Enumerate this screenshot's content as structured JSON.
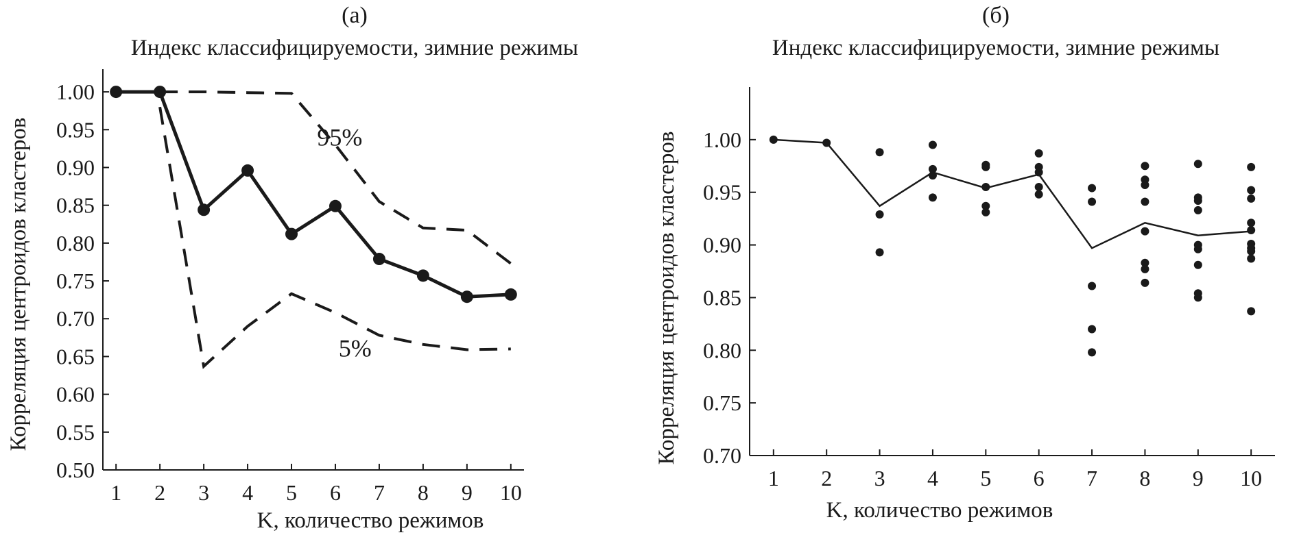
{
  "chart_data": [
    {
      "type": "line",
      "panel_label": "(а)",
      "title": "Индекс классифицируемости, зимние режимы",
      "xlabel": "K, количество режимов",
      "ylabel": "Корреляция центроидов кластеров",
      "x": [
        1,
        2,
        3,
        4,
        5,
        6,
        7,
        8,
        9,
        10
      ],
      "xlim": [
        0.7,
        10.3
      ],
      "ylim": [
        0.5,
        1.03
      ],
      "yticks": [
        "0.50",
        "0.55",
        "0.60",
        "0.65",
        "0.70",
        "0.75",
        "0.80",
        "0.85",
        "0.90",
        "0.95",
        "1.00"
      ],
      "series": [
        {
          "name": "mean",
          "style": "solid-markers",
          "values": [
            1.0,
            1.0,
            0.844,
            0.896,
            0.812,
            0.849,
            0.779,
            0.757,
            0.729,
            0.732
          ]
        },
        {
          "name": "95%",
          "style": "dashed",
          "values": [
            1.0,
            1.0,
            1.0,
            0.999,
            0.998,
            0.93,
            0.855,
            0.82,
            0.817,
            0.773
          ]
        },
        {
          "name": "5%",
          "style": "dashed",
          "values": [
            1.0,
            0.98,
            0.637,
            0.69,
            0.733,
            0.708,
            0.678,
            0.666,
            0.659,
            0.66
          ]
        }
      ],
      "annotations": [
        {
          "text": "95%",
          "x": 6.1,
          "y": 0.94
        },
        {
          "text": "5%",
          "x": 6.45,
          "y": 0.661
        }
      ]
    },
    {
      "type": "scatter",
      "panel_label": "(б)",
      "title": "Индекс классифицируемости, зимние режимы",
      "xlabel": "K, количество режимов",
      "ylabel": "Корреляция центроидов кластеров",
      "x": [
        1,
        2,
        3,
        4,
        5,
        6,
        7,
        8,
        9,
        10
      ],
      "xlim": [
        0.55,
        10.45
      ],
      "ylim": [
        0.7,
        1.05
      ],
      "yticks": [
        "0.70",
        "0.75",
        "0.80",
        "0.85",
        "0.90",
        "0.95",
        "1.00"
      ],
      "mean_line": [
        1.0,
        0.997,
        0.937,
        0.969,
        0.954,
        0.967,
        0.897,
        0.921,
        0.909,
        0.913
      ],
      "points": [
        [
          1,
          1.0
        ],
        [
          2,
          0.997
        ],
        [
          3,
          0.988
        ],
        [
          3,
          0.929
        ],
        [
          3,
          0.893
        ],
        [
          4,
          0.995
        ],
        [
          4,
          0.972
        ],
        [
          4,
          0.966
        ],
        [
          4,
          0.945
        ],
        [
          5,
          0.976
        ],
        [
          5,
          0.974
        ],
        [
          5,
          0.955
        ],
        [
          5,
          0.937
        ],
        [
          5,
          0.931
        ],
        [
          6,
          0.987
        ],
        [
          6,
          0.974
        ],
        [
          6,
          0.969
        ],
        [
          6,
          0.955
        ],
        [
          6,
          0.948
        ],
        [
          7,
          0.954
        ],
        [
          7,
          0.941
        ],
        [
          7,
          0.861
        ],
        [
          7,
          0.82
        ],
        [
          7,
          0.798
        ],
        [
          8,
          0.975
        ],
        [
          8,
          0.962
        ],
        [
          8,
          0.957
        ],
        [
          8,
          0.941
        ],
        [
          8,
          0.913
        ],
        [
          8,
          0.883
        ],
        [
          8,
          0.877
        ],
        [
          8,
          0.864
        ],
        [
          9,
          0.977
        ],
        [
          9,
          0.945
        ],
        [
          9,
          0.942
        ],
        [
          9,
          0.933
        ],
        [
          9,
          0.9
        ],
        [
          9,
          0.896
        ],
        [
          9,
          0.881
        ],
        [
          9,
          0.854
        ],
        [
          9,
          0.85
        ],
        [
          10,
          0.974
        ],
        [
          10,
          0.952
        ],
        [
          10,
          0.944
        ],
        [
          10,
          0.921
        ],
        [
          10,
          0.914
        ],
        [
          10,
          0.901
        ],
        [
          10,
          0.897
        ],
        [
          10,
          0.894
        ],
        [
          10,
          0.887
        ],
        [
          10,
          0.837
        ]
      ]
    }
  ]
}
